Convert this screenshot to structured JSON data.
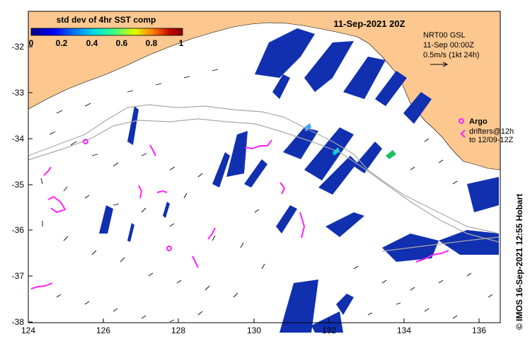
{
  "map": {
    "date_title": "11-Sep-2021 20Z",
    "colorbar": {
      "title": "std dev of 4hr SST comp",
      "ticks": [
        "0",
        "0.2",
        "0.4",
        "0.6",
        "0.8",
        "1"
      ],
      "range": [
        0,
        1
      ],
      "colors": [
        "#00008c",
        "#0000ff",
        "#0080ff",
        "#00e0e0",
        "#40ff80",
        "#e0ff00",
        "#ff8000",
        "#c00000",
        "#800000"
      ]
    },
    "legend": {
      "product": "NRT00 GSL",
      "time": "11-Sep 00:00Z",
      "scale": "0.5m/s (1kt 24h)"
    },
    "argo": {
      "label": "Argo",
      "drifters_line1": "drifters@12h",
      "drifters_line2": "to 12/09-12Z"
    },
    "credit": "© IMOS 16-Sep-2021 12:55 Hobart",
    "x_ticks": [
      "124",
      "126",
      "128",
      "130",
      "132",
      "134",
      "136"
    ],
    "y_ticks": [
      "-32",
      "-33",
      "-34",
      "-35",
      "-36",
      "-37",
      "-38"
    ],
    "x_range": [
      124,
      136.5
    ],
    "y_range": [
      -38.1,
      -31.4
    ],
    "colors": {
      "land": "#fcc890",
      "sea": "#ffffff",
      "drifter": "#ff20ff",
      "track": "#a8a8a8",
      "sst_blue": "#1030b0"
    }
  }
}
